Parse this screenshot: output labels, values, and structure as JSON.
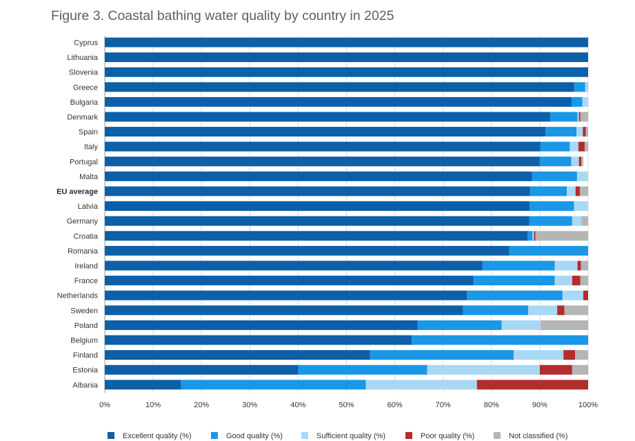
{
  "title": "Figure 3. Coastal bathing water quality by country in 2025",
  "chart_data": {
    "type": "bar",
    "orientation": "horizontal",
    "stacked": true,
    "title": "Figure 3. Coastal bathing water quality by country in 2025",
    "xlabel": "",
    "ylabel": "",
    "xlim": [
      0,
      100
    ],
    "x_ticks": [
      "0%",
      "10%",
      "20%",
      "30%",
      "40%",
      "50%",
      "60%",
      "70%",
      "80%",
      "90%",
      "100%"
    ],
    "grid": true,
    "legend_position": "bottom",
    "highlight_category": "EU average",
    "categories": [
      "Cyprus",
      "Lithuania",
      "Slovenia",
      "Greece",
      "Bulgaria",
      "Denmark",
      "Spain",
      "Italy",
      "Portugal",
      "Malta",
      "EU average",
      "Latvia",
      "Germany",
      "Croatia",
      "Romania",
      "Ireland",
      "France",
      "Netherlands",
      "Sweden",
      "Poland",
      "Belgium",
      "Finland",
      "Estonia",
      "Albania"
    ],
    "series": [
      {
        "name": "Excellent quality (%)",
        "color": "#0d5fa8",
        "values": [
          100,
          100,
          100,
          97.1,
          96.6,
          92.2,
          91.2,
          90.1,
          90.0,
          88.4,
          88.0,
          87.9,
          87.8,
          87.5,
          83.7,
          78.1,
          76.3,
          74.9,
          74.1,
          64.7,
          63.5,
          54.9,
          40.0,
          15.8
        ]
      },
      {
        "name": "Good quality (%)",
        "color": "#1a97e6",
        "values": [
          0,
          0,
          0,
          2.3,
          2.2,
          5.6,
          6.4,
          6.1,
          6.5,
          9.3,
          7.6,
          9.2,
          8.9,
          1.0,
          16.3,
          15.0,
          16.8,
          19.8,
          13.5,
          17.4,
          36.5,
          29.7,
          26.7,
          38.2
        ]
      },
      {
        "name": "Sufficient quality (%)",
        "color": "#a9d8f5",
        "values": [
          0,
          0,
          0,
          0.5,
          1.2,
          0.3,
          1.3,
          1.8,
          1.6,
          2.3,
          1.8,
          2.9,
          1.9,
          0.3,
          0,
          4.7,
          3.6,
          4.3,
          6.0,
          8.1,
          0,
          10.3,
          23.3,
          23.0
        ]
      },
      {
        "name": "Poor quality (%)",
        "color": "#b22d2d",
        "values": [
          0,
          0,
          0,
          0,
          0,
          0.3,
          0.6,
          1.3,
          0.5,
          0,
          0.9,
          0,
          0,
          0.3,
          0,
          0.7,
          1.7,
          1.0,
          1.5,
          0,
          0,
          2.4,
          6.7,
          23.0
        ]
      },
      {
        "name": "Not classified (%)",
        "color": "#b5b5b5",
        "values": [
          0,
          0,
          0,
          0.1,
          0,
          1.6,
          0.5,
          0.7,
          0.4,
          0,
          1.7,
          0,
          1.4,
          10.9,
          0,
          1.5,
          1.6,
          0,
          4.9,
          9.8,
          0,
          2.7,
          3.3,
          0
        ]
      }
    ]
  }
}
